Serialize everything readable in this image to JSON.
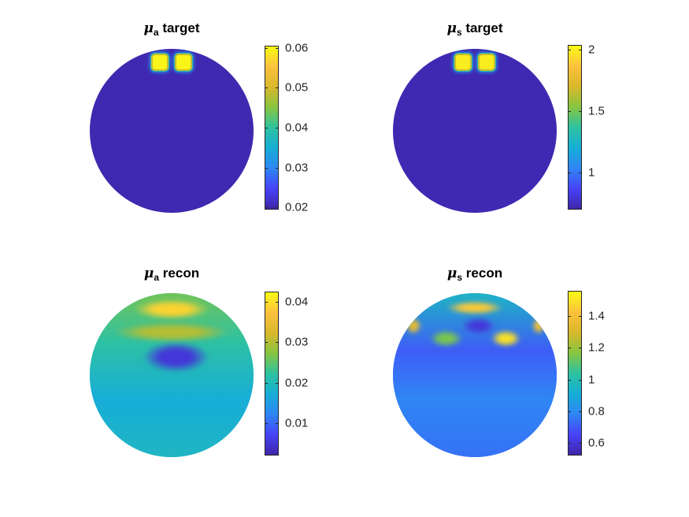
{
  "colormap": [
    "#3e26a8",
    "#4743f8",
    "#2f86f4",
    "#16aed6",
    "#2ec2a0",
    "#87c540",
    "#d9b82c",
    "#fcc13d",
    "#f9fb15"
  ],
  "chart_data": [
    {
      "type": "heatmap",
      "symbol": "μ",
      "subscript": "a",
      "title_rest": "target",
      "colorbar": {
        "range": [
          0.0195,
          0.0605
        ],
        "ticks": [
          0.02,
          0.03,
          0.04,
          0.05,
          0.06
        ],
        "tick_labels": [
          "0.02",
          "0.03",
          "0.04",
          "0.05",
          "0.06"
        ]
      },
      "background_value": 0.02,
      "description": "uniform disk with two small square high-value inclusions near the top",
      "inclusions": [
        {
          "cx": -0.14,
          "cy": 0.84,
          "value": 0.06
        },
        {
          "cx": 0.14,
          "cy": 0.84,
          "value": 0.06
        }
      ]
    },
    {
      "type": "heatmap",
      "symbol": "μ",
      "subscript": "s",
      "title_rest": "target",
      "colorbar": {
        "range": [
          0.7,
          2.04
        ],
        "ticks": [
          1,
          1.5,
          2
        ],
        "tick_labels": [
          "1",
          "1.5",
          "2"
        ]
      },
      "background_value": 0.72,
      "inclusions": [
        {
          "cx": -0.14,
          "cy": 0.84,
          "value": 2.0
        },
        {
          "cx": 0.14,
          "cy": 0.84,
          "value": 2.0
        }
      ]
    },
    {
      "type": "heatmap",
      "symbol": "μ",
      "subscript": "a",
      "title_rest": "recon",
      "colorbar": {
        "range": [
          0.002,
          0.0425
        ],
        "ticks": [
          0.01,
          0.02,
          0.03,
          0.04
        ],
        "tick_labels": [
          "0.01",
          "0.02",
          "0.03",
          "0.04"
        ]
      },
      "background_value": 0.019,
      "features": [
        {
          "cx": 0.0,
          "cy": 0.8,
          "rx": 0.45,
          "ry": 0.12,
          "value": 0.039
        },
        {
          "cx": 0.0,
          "cy": 0.52,
          "rx": 0.7,
          "ry": 0.12,
          "value": 0.03
        },
        {
          "cx": 0.05,
          "cy": 0.22,
          "rx": 0.4,
          "ry": 0.18,
          "value": 0.005
        }
      ]
    },
    {
      "type": "heatmap",
      "symbol": "μ",
      "subscript": "s",
      "title_rest": "recon",
      "colorbar": {
        "range": [
          0.52,
          1.56
        ],
        "ticks": [
          0.6,
          0.8,
          1,
          1.2,
          1.4
        ],
        "tick_labels": [
          "0.6",
          "0.8",
          "1",
          "1.2",
          "1.4"
        ]
      },
      "background_value": 0.75,
      "features": [
        {
          "cx": 0.0,
          "cy": 0.82,
          "rx": 0.35,
          "ry": 0.08,
          "value": 1.45
        },
        {
          "cx": 0.38,
          "cy": 0.45,
          "rx": 0.18,
          "ry": 0.1,
          "value": 1.5
        },
        {
          "cx": -0.35,
          "cy": 0.45,
          "rx": 0.2,
          "ry": 0.1,
          "value": 1.15
        },
        {
          "cx": 0.05,
          "cy": 0.6,
          "rx": 0.2,
          "ry": 0.1,
          "value": 0.6
        },
        {
          "cx": -0.75,
          "cy": 0.6,
          "rx": 0.1,
          "ry": 0.1,
          "value": 1.35
        },
        {
          "cx": 0.78,
          "cy": 0.6,
          "rx": 0.08,
          "ry": 0.1,
          "value": 1.4
        }
      ]
    }
  ]
}
